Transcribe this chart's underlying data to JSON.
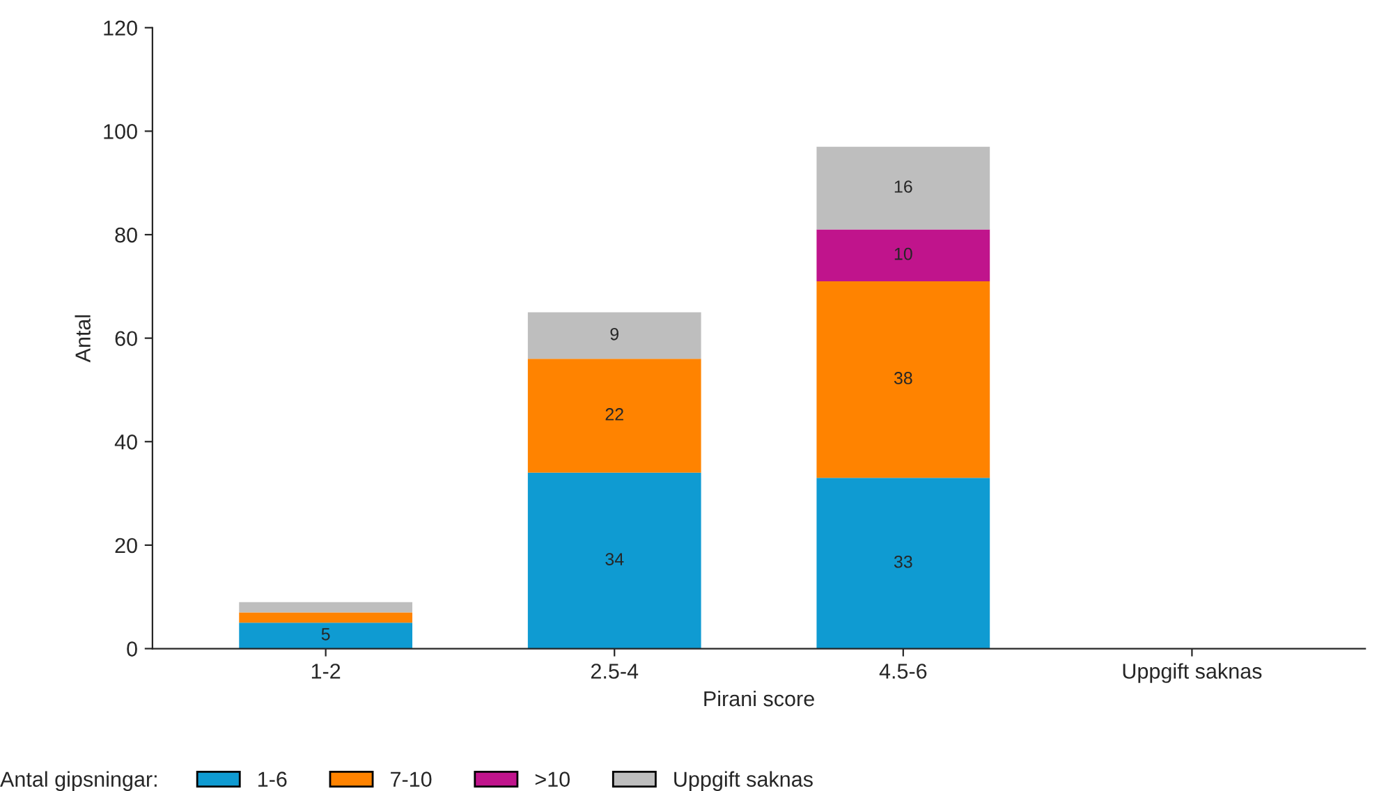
{
  "chart_data": {
    "type": "bar",
    "stacked": true,
    "xlabel": "Pirani score",
    "ylabel": "Antal",
    "legend_title": "Antal gipsningar:",
    "categories": [
      "1-2",
      "2.5-4",
      "4.5-6",
      "Uppgift saknas"
    ],
    "series": [
      {
        "name": "1-6",
        "color": "#0f9bd2",
        "values": [
          5,
          34,
          33,
          null
        ],
        "value_labels": [
          "5",
          "34",
          "33",
          null
        ]
      },
      {
        "name": "7-10",
        "color": "#ff8300",
        "values": [
          2,
          22,
          38,
          null
        ],
        "value_labels": [
          null,
          "22",
          "38",
          null
        ]
      },
      {
        "name": ">10",
        "color": "#c0148c",
        "values": [
          0,
          0,
          10,
          null
        ],
        "value_labels": [
          null,
          null,
          "10",
          null
        ]
      },
      {
        "name": "Uppgift saknas",
        "color": "#bebebe",
        "values": [
          2,
          9,
          16,
          null
        ],
        "value_labels": [
          null,
          "9",
          "16",
          null
        ]
      }
    ],
    "ylim": [
      0,
      120
    ],
    "yticks": [
      0,
      20,
      40,
      60,
      80,
      100,
      120
    ],
    "grid": false,
    "legend": "bottom"
  }
}
